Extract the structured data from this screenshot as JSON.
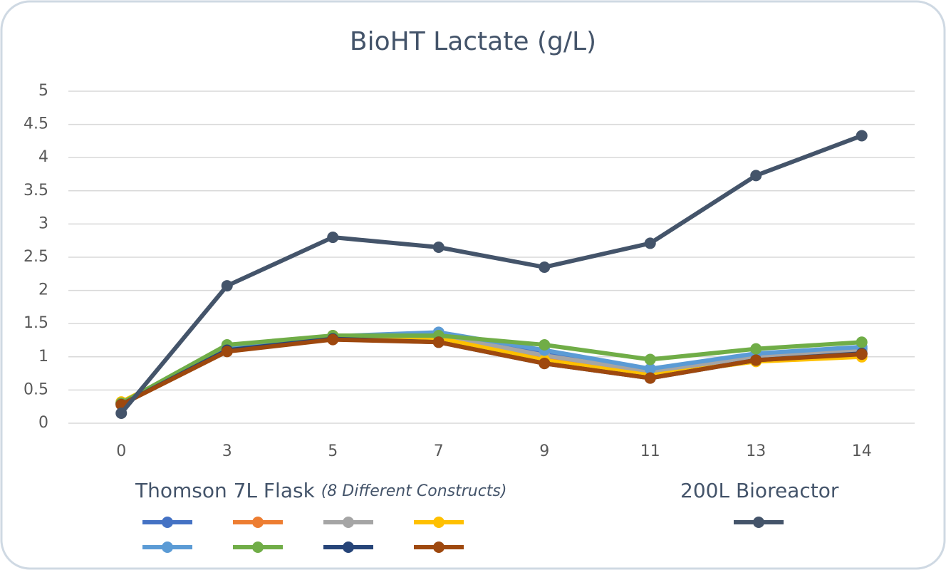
{
  "chart_data": {
    "type": "line",
    "title": "BioHT Lactate (g/L)",
    "categories": [
      "0",
      "3",
      "5",
      "7",
      "9",
      "11",
      "13",
      "14"
    ],
    "ylim": [
      0,
      5
    ],
    "yticks": [
      0,
      0.5,
      1,
      1.5,
      2,
      2.5,
      3,
      3.5,
      4,
      4.5,
      5
    ],
    "grid": true,
    "groups": [
      {
        "title": "Thomson 7L Flask",
        "note": "(8 Different Constructs)",
        "series": [
          {
            "color": "#4472c4",
            "values": [
              0.3,
              1.15,
              1.3,
              1.35,
              1.05,
              0.8,
              1.03,
              1.12
            ]
          },
          {
            "color": "#ed7d31",
            "values": [
              0.3,
              1.12,
              1.3,
              1.3,
              0.98,
              0.75,
              0.97,
              1.05
            ]
          },
          {
            "color": "#a5a5a5",
            "values": [
              0.3,
              1.14,
              1.3,
              1.33,
              1.02,
              0.78,
              1.0,
              1.1
            ]
          },
          {
            "color": "#ffc000",
            "values": [
              0.32,
              1.12,
              1.32,
              1.28,
              0.95,
              0.72,
              0.93,
              1.0
            ]
          },
          {
            "color": "#5b9bd5",
            "values": [
              0.3,
              1.16,
              1.31,
              1.37,
              1.1,
              0.82,
              1.05,
              1.15
            ]
          },
          {
            "color": "#70ad47",
            "values": [
              0.3,
              1.18,
              1.32,
              1.32,
              1.18,
              0.96,
              1.12,
              1.22
            ]
          },
          {
            "color": "#264478",
            "values": [
              0.28,
              1.1,
              1.27,
              1.22,
              0.9,
              0.68,
              0.95,
              1.05
            ]
          },
          {
            "color": "#9e480e",
            "values": [
              0.28,
              1.08,
              1.26,
              1.22,
              0.9,
              0.68,
              0.95,
              1.04
            ]
          }
        ]
      },
      {
        "title": "200L Bioreactor",
        "series": [
          {
            "color": "#44546a",
            "values": [
              0.15,
              2.07,
              2.8,
              2.65,
              2.35,
              2.71,
              3.73,
              4.33
            ]
          }
        ]
      }
    ]
  }
}
